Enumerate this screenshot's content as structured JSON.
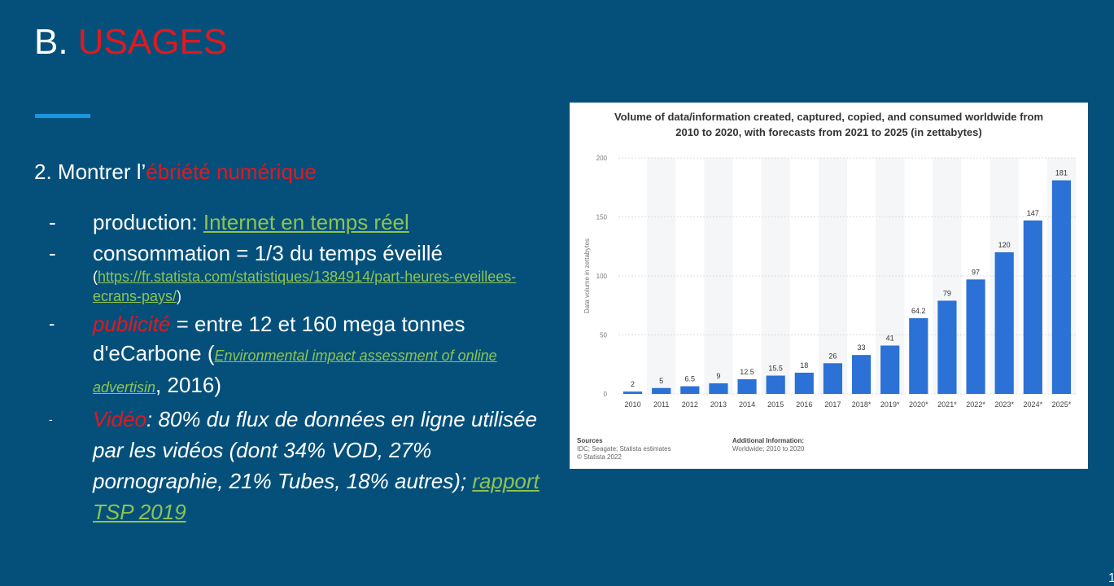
{
  "slide": {
    "title_prefix": "B. ",
    "title_accent": "USAGES",
    "subtitle_prefix": "2. Montrer l’",
    "subtitle_accent": "ébriété numérique",
    "page_number": "1"
  },
  "bullets": {
    "b1_label": "production: ",
    "b1_link": "Internet en temps réel",
    "b2_text": "consommation = 1/3 du temps éveillé",
    "b2_open": "(",
    "b2_link": "https://fr.statista.com/statistiques/1384914/part-heures-eveillees-ecrans-pays/",
    "b2_close": ")",
    "b3_accent": "publicité",
    "b3_text": " =  entre 12 et 160 mega tonnes d'eCarbone (",
    "b3_link": "Environmental impact assessment of online advertisin",
    "b3_tail": ", 2016)",
    "b4_accent": "Vidéo",
    "b4_text": ": 80% du flux de données en ligne utilisée par les vidéos (dont 34% VOD, 27% pornographie, 21% Tubes, 18% autres); ",
    "b4_link": "rapport TSP 2019",
    "dash": "-"
  },
  "chart_data": {
    "type": "bar",
    "title_line1": "Volume of data/information created, captured, copied, and consumed worldwide from",
    "title_line2": "2010 to 2020, with forecasts from 2021 to 2025 (in zettabytes)",
    "ylabel": "Data volume in zettabytes",
    "ylim": [
      0,
      200
    ],
    "yticks": [
      0,
      50,
      100,
      150,
      200
    ],
    "categories": [
      "2010",
      "2011",
      "2012",
      "2013",
      "2014",
      "2015",
      "2016",
      "2017",
      "2018*",
      "2019*",
      "2020*",
      "2021*",
      "2022*",
      "2023*",
      "2024*",
      "2025*"
    ],
    "values": [
      2,
      5,
      6.5,
      9,
      12.5,
      15.5,
      18,
      26,
      33,
      41,
      64.2,
      79,
      97,
      120,
      147,
      181
    ],
    "value_labels": [
      "2",
      "5",
      "6.5",
      "9",
      "12.5",
      "15.5",
      "18",
      "26",
      "33",
      "41",
      "64.2",
      "79",
      "97",
      "120",
      "147",
      "181"
    ],
    "bar_color": "#2b71d6",
    "grid": true,
    "sources_label": "Sources",
    "sources_text_1": "IDC; Seagate; Statista estimates",
    "sources_text_2": "© Statista 2022",
    "info_label": "Additional Information:",
    "info_text": "Worldwide; 2010 to 2020"
  }
}
